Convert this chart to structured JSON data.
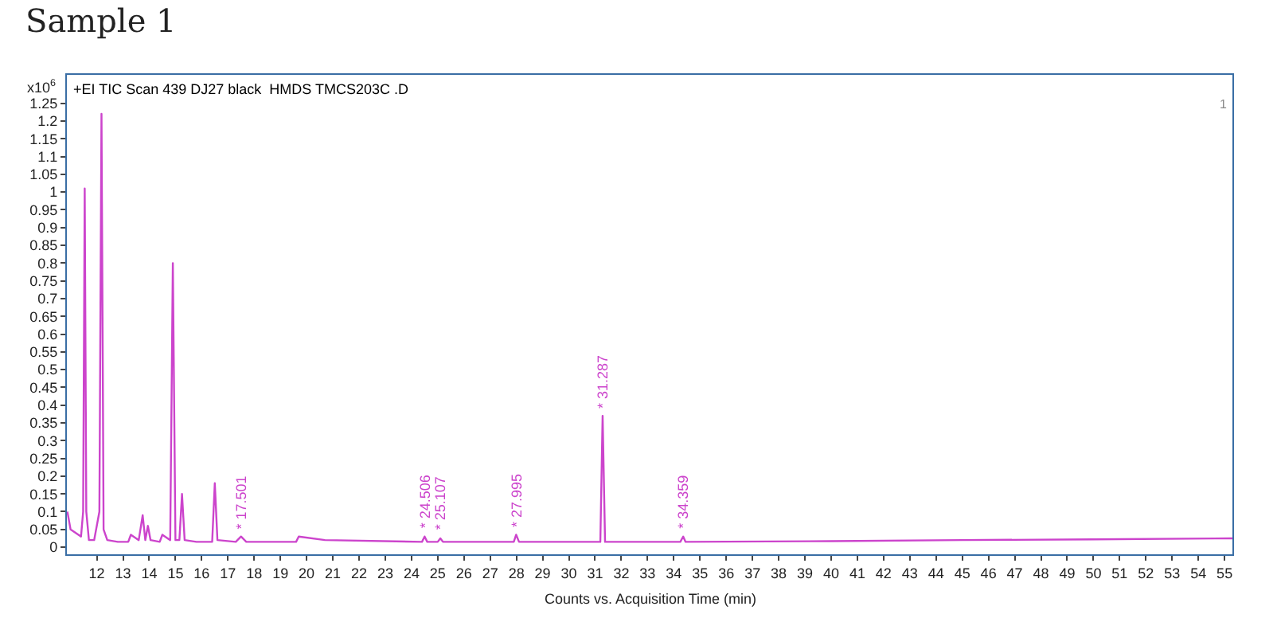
{
  "chart_data": {
    "type": "line",
    "title": "Sample 1",
    "xlabel": "Counts vs. Acquisition Time (min)",
    "ylabel": "x10$^{6}$",
    "x": [
      10.88,
      11.0,
      11.2,
      11.4,
      11.48,
      11.54,
      11.6,
      11.7,
      11.9,
      12.1,
      12.18,
      12.26,
      12.4,
      12.8,
      13.2,
      13.3,
      13.6,
      13.75,
      13.85,
      13.95,
      14.05,
      14.4,
      14.5,
      14.8,
      14.9,
      15.0,
      15.15,
      15.25,
      15.35,
      15.8,
      16.4,
      16.5,
      16.6,
      17.3,
      17.5,
      17.7,
      19.6,
      19.7,
      20.7,
      24.4,
      24.5,
      24.6,
      25.0,
      25.1,
      25.2,
      27.9,
      27.99,
      28.1,
      31.2,
      31.287,
      31.38,
      34.25,
      34.359,
      34.45,
      40,
      45,
      50,
      55.3
    ],
    "series": [
      {
        "color": "#cc44cc",
        "values": [
          0.1,
          0.05,
          0.04,
          0.03,
          0.1,
          1.01,
          0.1,
          0.02,
          0.02,
          0.1,
          1.22,
          0.05,
          0.02,
          0.015,
          0.015,
          0.035,
          0.02,
          0.09,
          0.02,
          0.06,
          0.02,
          0.015,
          0.035,
          0.02,
          0.8,
          0.02,
          0.02,
          0.15,
          0.02,
          0.015,
          0.015,
          0.18,
          0.02,
          0.015,
          0.03,
          0.015,
          0.015,
          0.03,
          0.02,
          0.015,
          0.03,
          0.015,
          0.015,
          0.025,
          0.015,
          0.015,
          0.035,
          0.015,
          0.015,
          0.37,
          0.015,
          0.015,
          0.03,
          0.015,
          0.017,
          0.02,
          0.022,
          0.025
        ]
      }
    ],
    "annotations": [
      "+EI TIC Scan 439 DJ27 black  HMDS TMCS203C .D",
      "1",
      {
        "text": "* 17.501",
        "x": 17.501,
        "y": 0.03
      },
      {
        "text": "* 24.506",
        "x": 24.506,
        "y": 0.03
      },
      {
        "text": "* 25.107",
        "x": 25.107,
        "y": 0.025
      },
      {
        "text": "* 27.995",
        "x": 27.995,
        "y": 0.035
      },
      {
        "text": "* 31.287",
        "x": 31.287,
        "y": 0.37
      },
      {
        "text": "* 34.359",
        "x": 34.359,
        "y": 0.03
      }
    ],
    "xlim": [
      10.86,
      55.3
    ],
    "xticks": [
      12,
      13,
      14,
      15,
      16,
      17,
      18,
      19,
      20,
      21,
      22,
      23,
      24,
      25,
      26,
      27,
      28,
      29,
      30,
      31,
      32,
      33,
      34,
      35,
      36,
      37,
      38,
      39,
      40,
      41,
      42,
      43,
      44,
      45,
      46,
      47,
      48,
      49,
      50,
      51,
      52,
      53,
      54,
      55
    ],
    "ylim": [
      -0.02,
      1.33
    ],
    "yticks": [
      0,
      0.05,
      0.1,
      0.15,
      0.2,
      0.25,
      0.3,
      0.35,
      0.4,
      0.45,
      0.5,
      0.55,
      0.6,
      0.65,
      0.7,
      0.75,
      0.8,
      0.85,
      0.9,
      0.95,
      1,
      1.05,
      1.1,
      1.15,
      1.2,
      1.25
    ],
    "grid": false,
    "legend": false,
    "marker": "none",
    "line_style": "solid"
  }
}
